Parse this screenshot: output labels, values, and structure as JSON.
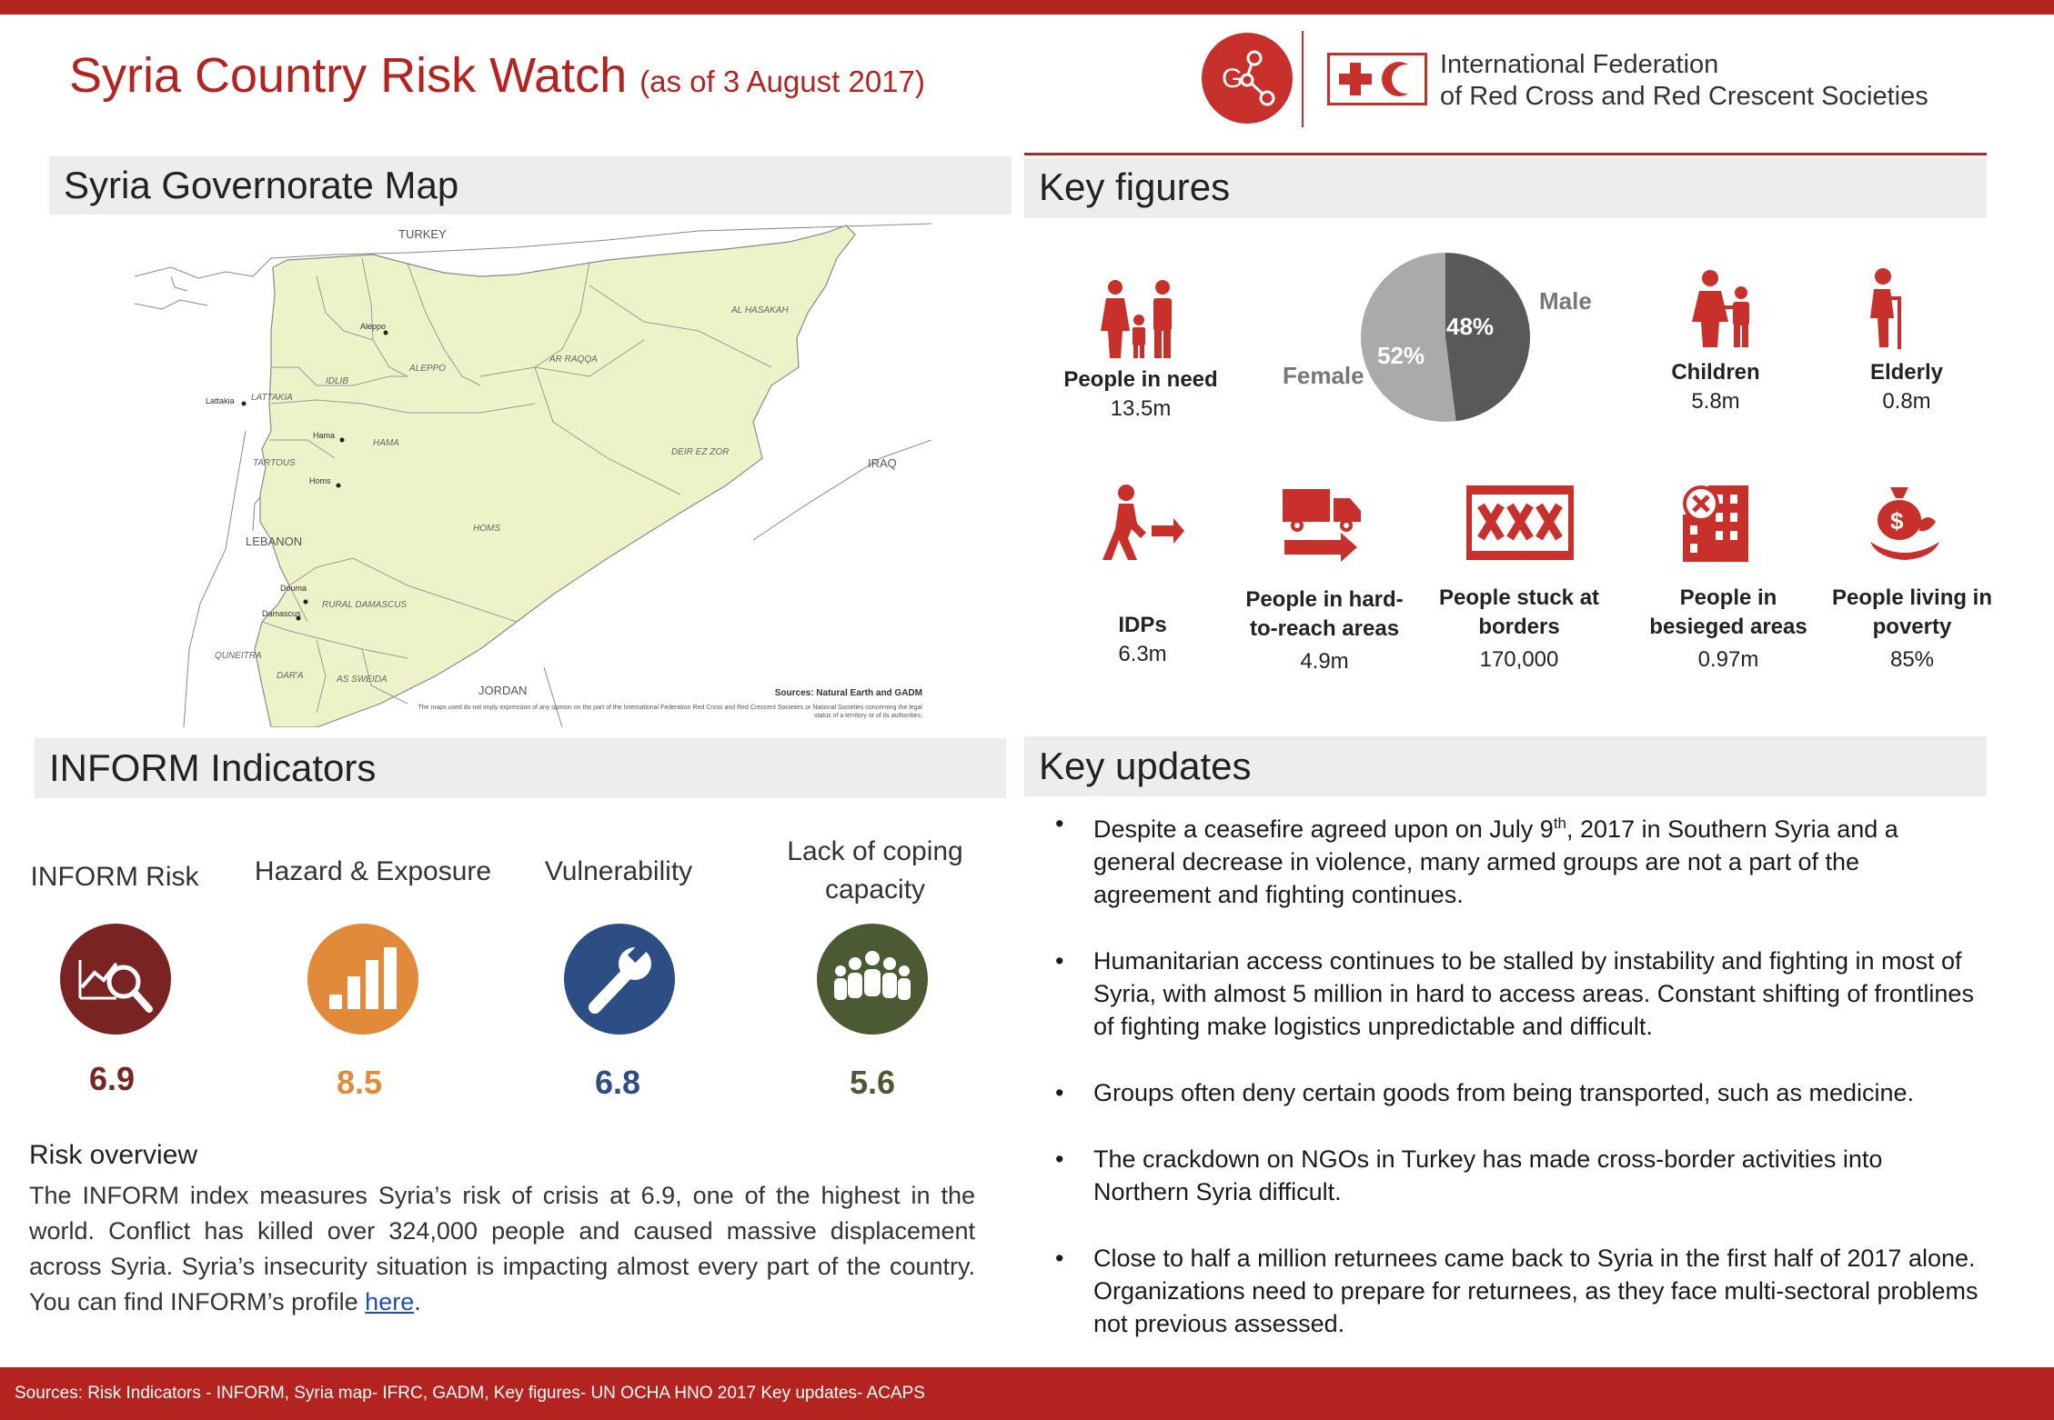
{
  "header": {
    "title": "Syria Country Risk Watch",
    "date": "(as of 3 August 2017)",
    "org_name_line1": "International Federation",
    "org_name_line2": "of Red Cross and Red Crescent Societies",
    "logo_letters": "G"
  },
  "colors": {
    "brand_red": "#b3231f",
    "inform_risk": "#7a2323",
    "hazard": "#e08a3a",
    "vulnerability": "#2d4e85",
    "coping": "#4c5a34",
    "icon_red": "#c8302c"
  },
  "sections": {
    "map": "Syria Governorate Map",
    "key_figures": "Key figures",
    "inform": "INFORM Indicators",
    "key_updates": "Key updates"
  },
  "map": {
    "countries": [
      "TURKEY",
      "IRAQ",
      "LEBANON",
      "JORDAN"
    ],
    "governorates": [
      "AL HASAKAH",
      "AR RAQQA",
      "ALEPPO",
      "IDLIB",
      "LATTAKIA",
      "HAMA",
      "TARTOUS",
      "DEIR EZ ZOR",
      "HOMS",
      "RURAL DAMASCUS",
      "QUNEITRA",
      "DAR'A",
      "AS SWEIDA"
    ],
    "cities": [
      "Aleppo",
      "Lattakia",
      "Hama",
      "Homs",
      "Douma",
      "Damascus"
    ],
    "source": "Sources: Natural Earth and GADM",
    "disclaimer": "The maps used do not imply expression of any opinion on the part of the International Federation Red Cross and Red Crescent Societies or National Societies concerning the legal status of a territory or of its authorities."
  },
  "key_figures": {
    "people_in_need": {
      "label": "People in need",
      "value": "13.5m",
      "icon": "family-icon"
    },
    "gender": {
      "male_label": "Male",
      "female_label": "Female",
      "male_pct": 48,
      "female_pct": 52,
      "male_text": "48%",
      "female_text": "52%",
      "male_color": "#595959",
      "female_color": "#aaaaaa"
    },
    "children": {
      "label": "Children",
      "value": "5.8m",
      "icon": "children-icon"
    },
    "elderly": {
      "label": "Elderly",
      "value": "0.8m",
      "icon": "elderly-icon"
    },
    "idps": {
      "label": "IDPs",
      "value": "6.3m",
      "icon": "walking-person-icon"
    },
    "hard_to_reach": {
      "label_line1": "People in hard-",
      "label_line2": "to-reach areas",
      "value": "4.9m",
      "icon": "truck-icon"
    },
    "borders": {
      "label_line1": "People stuck at",
      "label_line2": "borders",
      "value": "170,000",
      "icon": "border-barrier-icon"
    },
    "besieged": {
      "label_line1": "People in",
      "label_line2": "besieged areas",
      "value": "0.97m",
      "icon": "besieged-building-icon"
    },
    "poverty": {
      "label_line1": "People living in",
      "label_line2": "poverty",
      "value": "85%",
      "icon": "money-bag-icon"
    }
  },
  "inform": {
    "risk": {
      "label": "INFORM Risk",
      "value": "6.9",
      "icon": "chart-magnifier-icon"
    },
    "hazard": {
      "label": "Hazard & Exposure",
      "value": "8.5",
      "icon": "bar-chart-icon"
    },
    "vulnerability": {
      "label": "Vulnerability",
      "value": "6.8",
      "icon": "wrench-icon"
    },
    "coping": {
      "label_line1": "Lack of coping",
      "label_line2": "capacity",
      "value": "5.6",
      "icon": "group-people-icon"
    }
  },
  "risk_overview": {
    "title": "Risk overview",
    "text": "The INFORM index measures Syria’s risk of crisis at 6.9, one of the highest in the world. Conflict has killed over 324,000 people and caused massive displacement across Syria. Syria’s insecurity situation is impacting almost every part of the country. You can find INFORM’s profile ",
    "link_text": "here",
    "tail": "."
  },
  "key_updates": [
    {
      "pre": "Despite a ceasefire agreed upon on July 9",
      "sup": "th",
      "post": ", 2017 in Southern Syria and a general decrease in violence, many armed groups are not a part of the agreement and fighting continues."
    },
    {
      "pre": "Humanitarian access continues to be stalled by instability and fighting in most of Syria, with almost 5 million in hard to access areas. Constant shifting of frontlines of fighting make logistics unpredictable and difficult.",
      "sup": "",
      "post": ""
    },
    {
      "pre": "Groups often deny certain goods from being transported, such as medicine.",
      "sup": "",
      "post": ""
    },
    {
      "pre": "The crackdown on NGOs in Turkey has made cross-border activities into Northern Syria difficult.",
      "sup": "",
      "post": ""
    },
    {
      "pre": "Close to half a million returnees came back to Syria in the first half of 2017 alone. Organizations need to prepare for returnees, as they face multi-sectoral problems not previous assessed.",
      "sup": "",
      "post": ""
    }
  ],
  "footer": {
    "sources": "Sources: Risk Indicators - INFORM, Syria map- IFRC, GADM, Key figures- UN OCHA HNO 2017 Key updates- ACAPS"
  }
}
